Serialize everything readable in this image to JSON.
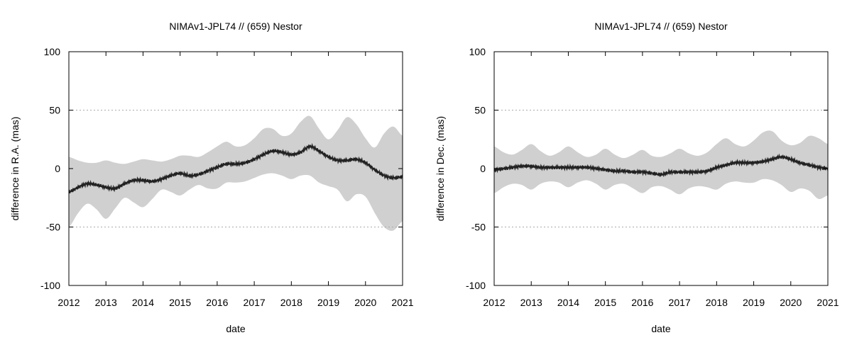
{
  "chart_data": [
    {
      "type": "line",
      "title": "NIMAv1-JPL74 // (659) Nestor",
      "xlabel": "date",
      "ylabel": "difference in R.A. (mas)",
      "xlim": [
        2012,
        2021
      ],
      "ylim": [
        -100,
        100
      ],
      "xticks": [
        "2012",
        "2013",
        "2014",
        "2015",
        "2016",
        "2017",
        "2018",
        "2019",
        "2020",
        "2021"
      ],
      "yticks": [
        "100",
        "50",
        "0",
        "-50",
        "-100"
      ],
      "grid": "dotted horizontal at 50 and -50",
      "band_color": "#d0d0d0",
      "line_color": "#222222",
      "series": [
        {
          "name": "difference",
          "x": [
            2012.0,
            2012.25,
            2012.5,
            2012.75,
            2013.0,
            2013.25,
            2013.5,
            2013.75,
            2014.0,
            2014.25,
            2014.5,
            2014.75,
            2015.0,
            2015.25,
            2015.5,
            2015.75,
            2016.0,
            2016.25,
            2016.5,
            2016.75,
            2017.0,
            2017.25,
            2017.5,
            2017.75,
            2018.0,
            2018.25,
            2018.5,
            2018.75,
            2019.0,
            2019.25,
            2019.5,
            2019.75,
            2020.0,
            2020.25,
            2020.5,
            2020.75,
            2021.0
          ],
          "y": [
            -20,
            -16,
            -13,
            -14,
            -16,
            -17,
            -13,
            -10,
            -10,
            -11,
            -9,
            -6,
            -4,
            -6,
            -5,
            -2,
            1,
            4,
            4,
            5,
            8,
            12,
            15,
            14,
            12,
            14,
            19,
            15,
            10,
            7,
            7,
            8,
            5,
            -1,
            -6,
            -8,
            -7
          ]
        },
        {
          "name": "uncertainty upper",
          "x": [
            2012.0,
            2012.25,
            2012.5,
            2012.75,
            2013.0,
            2013.25,
            2013.5,
            2013.75,
            2014.0,
            2014.25,
            2014.5,
            2014.75,
            2015.0,
            2015.25,
            2015.5,
            2015.75,
            2016.0,
            2016.25,
            2016.5,
            2016.75,
            2017.0,
            2017.25,
            2017.5,
            2017.75,
            2018.0,
            2018.25,
            2018.5,
            2018.75,
            2019.0,
            2019.25,
            2019.5,
            2019.75,
            2020.0,
            2020.25,
            2020.5,
            2020.75,
            2021.0
          ],
          "y": [
            10,
            7,
            5,
            5,
            7,
            5,
            4,
            6,
            8,
            7,
            6,
            8,
            11,
            11,
            10,
            14,
            19,
            23,
            19,
            20,
            26,
            34,
            34,
            28,
            30,
            40,
            45,
            34,
            25,
            33,
            44,
            38,
            26,
            18,
            30,
            36,
            28
          ]
        },
        {
          "name": "uncertainty lower",
          "x": [
            2012.0,
            2012.25,
            2012.5,
            2012.75,
            2013.0,
            2013.25,
            2013.5,
            2013.75,
            2014.0,
            2014.25,
            2014.5,
            2014.75,
            2015.0,
            2015.25,
            2015.5,
            2015.75,
            2016.0,
            2016.25,
            2016.5,
            2016.75,
            2017.0,
            2017.25,
            2017.5,
            2017.75,
            2018.0,
            2018.25,
            2018.5,
            2018.75,
            2019.0,
            2019.25,
            2019.5,
            2019.75,
            2020.0,
            2020.25,
            2020.5,
            2020.75,
            2021.0
          ],
          "y": [
            -50,
            -38,
            -30,
            -35,
            -43,
            -34,
            -25,
            -29,
            -33,
            -26,
            -18,
            -20,
            -23,
            -18,
            -14,
            -17,
            -17,
            -12,
            -12,
            -11,
            -8,
            -5,
            -4,
            -6,
            -9,
            -6,
            -6,
            -12,
            -15,
            -18,
            -28,
            -22,
            -24,
            -38,
            -50,
            -53,
            -45
          ]
        }
      ]
    },
    {
      "type": "line",
      "title": "NIMAv1-JPL74 // (659) Nestor",
      "xlabel": "date",
      "ylabel": "difference in Dec. (mas)",
      "xlim": [
        2012,
        2021
      ],
      "ylim": [
        -100,
        100
      ],
      "xticks": [
        "2012",
        "2013",
        "2014",
        "2015",
        "2016",
        "2017",
        "2018",
        "2019",
        "2020",
        "2021"
      ],
      "yticks": [
        "100",
        "50",
        "0",
        "-50",
        "-100"
      ],
      "grid": "dotted horizontal at 50 and -50",
      "band_color": "#d0d0d0",
      "line_color": "#222222",
      "series": [
        {
          "name": "difference",
          "x": [
            2012.0,
            2012.25,
            2012.5,
            2012.75,
            2013.0,
            2013.25,
            2013.5,
            2013.75,
            2014.0,
            2014.25,
            2014.5,
            2014.75,
            2015.0,
            2015.25,
            2015.5,
            2015.75,
            2016.0,
            2016.25,
            2016.5,
            2016.75,
            2017.0,
            2017.25,
            2017.5,
            2017.75,
            2018.0,
            2018.25,
            2018.5,
            2018.75,
            2019.0,
            2019.25,
            2019.5,
            2019.75,
            2020.0,
            2020.25,
            2020.5,
            2020.75,
            2021.0
          ],
          "y": [
            -1,
            0,
            1,
            2,
            2,
            1,
            1,
            1,
            1,
            1,
            1,
            0,
            -1,
            -2,
            -2,
            -3,
            -3,
            -4,
            -5,
            -3,
            -3,
            -3,
            -3,
            -2,
            1,
            3,
            5,
            5,
            5,
            6,
            8,
            10,
            8,
            5,
            3,
            1,
            0
          ]
        },
        {
          "name": "uncertainty upper",
          "x": [
            2012.0,
            2012.25,
            2012.5,
            2012.75,
            2013.0,
            2013.25,
            2013.5,
            2013.75,
            2014.0,
            2014.25,
            2014.5,
            2014.75,
            2015.0,
            2015.25,
            2015.5,
            2015.75,
            2016.0,
            2016.25,
            2016.5,
            2016.75,
            2017.0,
            2017.25,
            2017.5,
            2017.75,
            2018.0,
            2018.25,
            2018.5,
            2018.75,
            2019.0,
            2019.25,
            2019.5,
            2019.75,
            2020.0,
            2020.25,
            2020.5,
            2020.75,
            2021.0
          ],
          "y": [
            19,
            14,
            12,
            16,
            21,
            15,
            11,
            14,
            19,
            14,
            10,
            12,
            17,
            12,
            9,
            12,
            16,
            11,
            10,
            13,
            17,
            13,
            11,
            14,
            21,
            26,
            21,
            19,
            24,
            31,
            32,
            24,
            20,
            22,
            28,
            26,
            21
          ]
        },
        {
          "name": "uncertainty lower",
          "x": [
            2012.0,
            2012.25,
            2012.5,
            2012.75,
            2013.0,
            2013.25,
            2013.5,
            2013.75,
            2014.0,
            2014.25,
            2014.5,
            2014.75,
            2015.0,
            2015.25,
            2015.5,
            2015.75,
            2016.0,
            2016.25,
            2016.5,
            2016.75,
            2017.0,
            2017.25,
            2017.5,
            2017.75,
            2018.0,
            2018.25,
            2018.5,
            2018.75,
            2019.0,
            2019.25,
            2019.5,
            2019.75,
            2020.0,
            2020.25,
            2020.5,
            2020.75,
            2021.0
          ],
          "y": [
            -21,
            -16,
            -13,
            -14,
            -18,
            -13,
            -11,
            -12,
            -16,
            -12,
            -10,
            -13,
            -18,
            -14,
            -13,
            -17,
            -21,
            -16,
            -15,
            -18,
            -22,
            -17,
            -15,
            -16,
            -18,
            -13,
            -11,
            -12,
            -12,
            -9,
            -10,
            -14,
            -20,
            -17,
            -19,
            -26,
            -23
          ]
        }
      ]
    }
  ]
}
